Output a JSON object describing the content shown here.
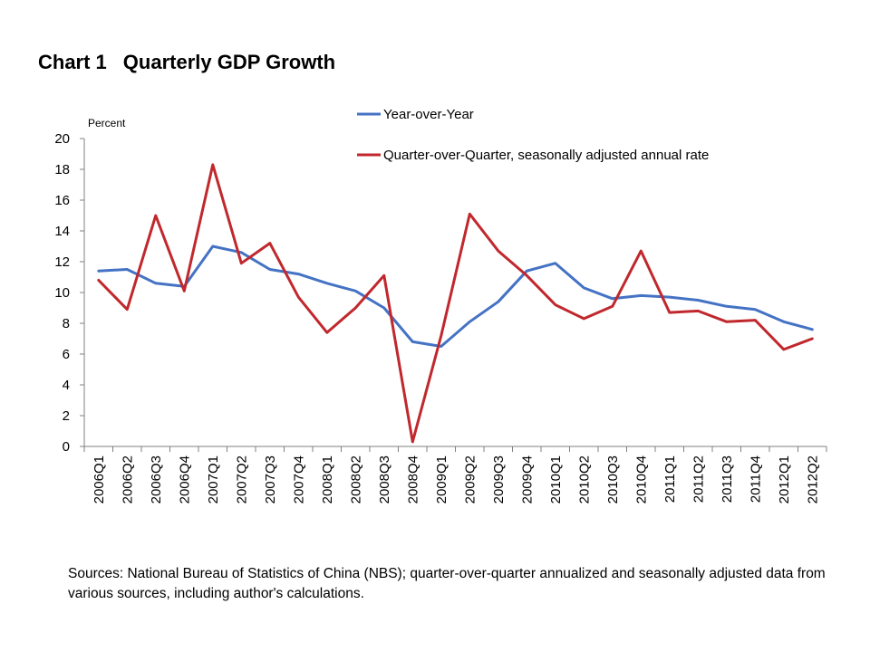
{
  "title": {
    "number": "Chart 1",
    "text": "Quarterly GDP Growth"
  },
  "source_note": "Sources: National Bureau of Statistics of China (NBS); quarter-over-quarter annualized and seasonally adjusted data from various sources, including author's calculations.",
  "chart_data": {
    "type": "line",
    "title": "Quarterly GDP Growth",
    "xlabel": "",
    "ylabel": "Percent",
    "ylim": [
      0,
      20
    ],
    "yticks": [
      0,
      2,
      4,
      6,
      8,
      10,
      12,
      14,
      16,
      18,
      20
    ],
    "grid": false,
    "legend_position": "top-right",
    "categories": [
      "2006Q1",
      "2006Q2",
      "2006Q3",
      "2006Q4",
      "2007Q1",
      "2007Q2",
      "2007Q3",
      "2007Q4",
      "2008Q1",
      "2008Q2",
      "2008Q3",
      "2008Q4",
      "2009Q1",
      "2009Q2",
      "2009Q3",
      "2009Q4",
      "2010Q1",
      "2010Q2",
      "2010Q3",
      "2010Q4",
      "2011Q1",
      "2011Q2",
      "2011Q3",
      "2011Q4",
      "2012Q1",
      "2012Q2"
    ],
    "series": [
      {
        "name": "Year-over-Year",
        "color": "#4472c4",
        "values": [
          11.4,
          11.5,
          10.6,
          10.4,
          13.0,
          12.6,
          11.5,
          11.2,
          10.6,
          10.1,
          9.0,
          6.8,
          6.5,
          8.1,
          9.4,
          11.4,
          11.9,
          10.3,
          9.6,
          9.8,
          9.7,
          9.5,
          9.1,
          8.9,
          8.1,
          7.6
        ]
      },
      {
        "name": "Quarter-over-Quarter, seasonally adjusted annual rate",
        "color": "#c0282d",
        "values": [
          10.8,
          8.9,
          15.0,
          10.1,
          18.3,
          11.9,
          13.2,
          9.7,
          7.4,
          9.0,
          11.1,
          0.3,
          7.2,
          15.1,
          12.7,
          11.1,
          9.2,
          8.3,
          9.1,
          12.7,
          8.7,
          8.8,
          8.1,
          8.2,
          6.3,
          7.0
        ]
      }
    ]
  }
}
